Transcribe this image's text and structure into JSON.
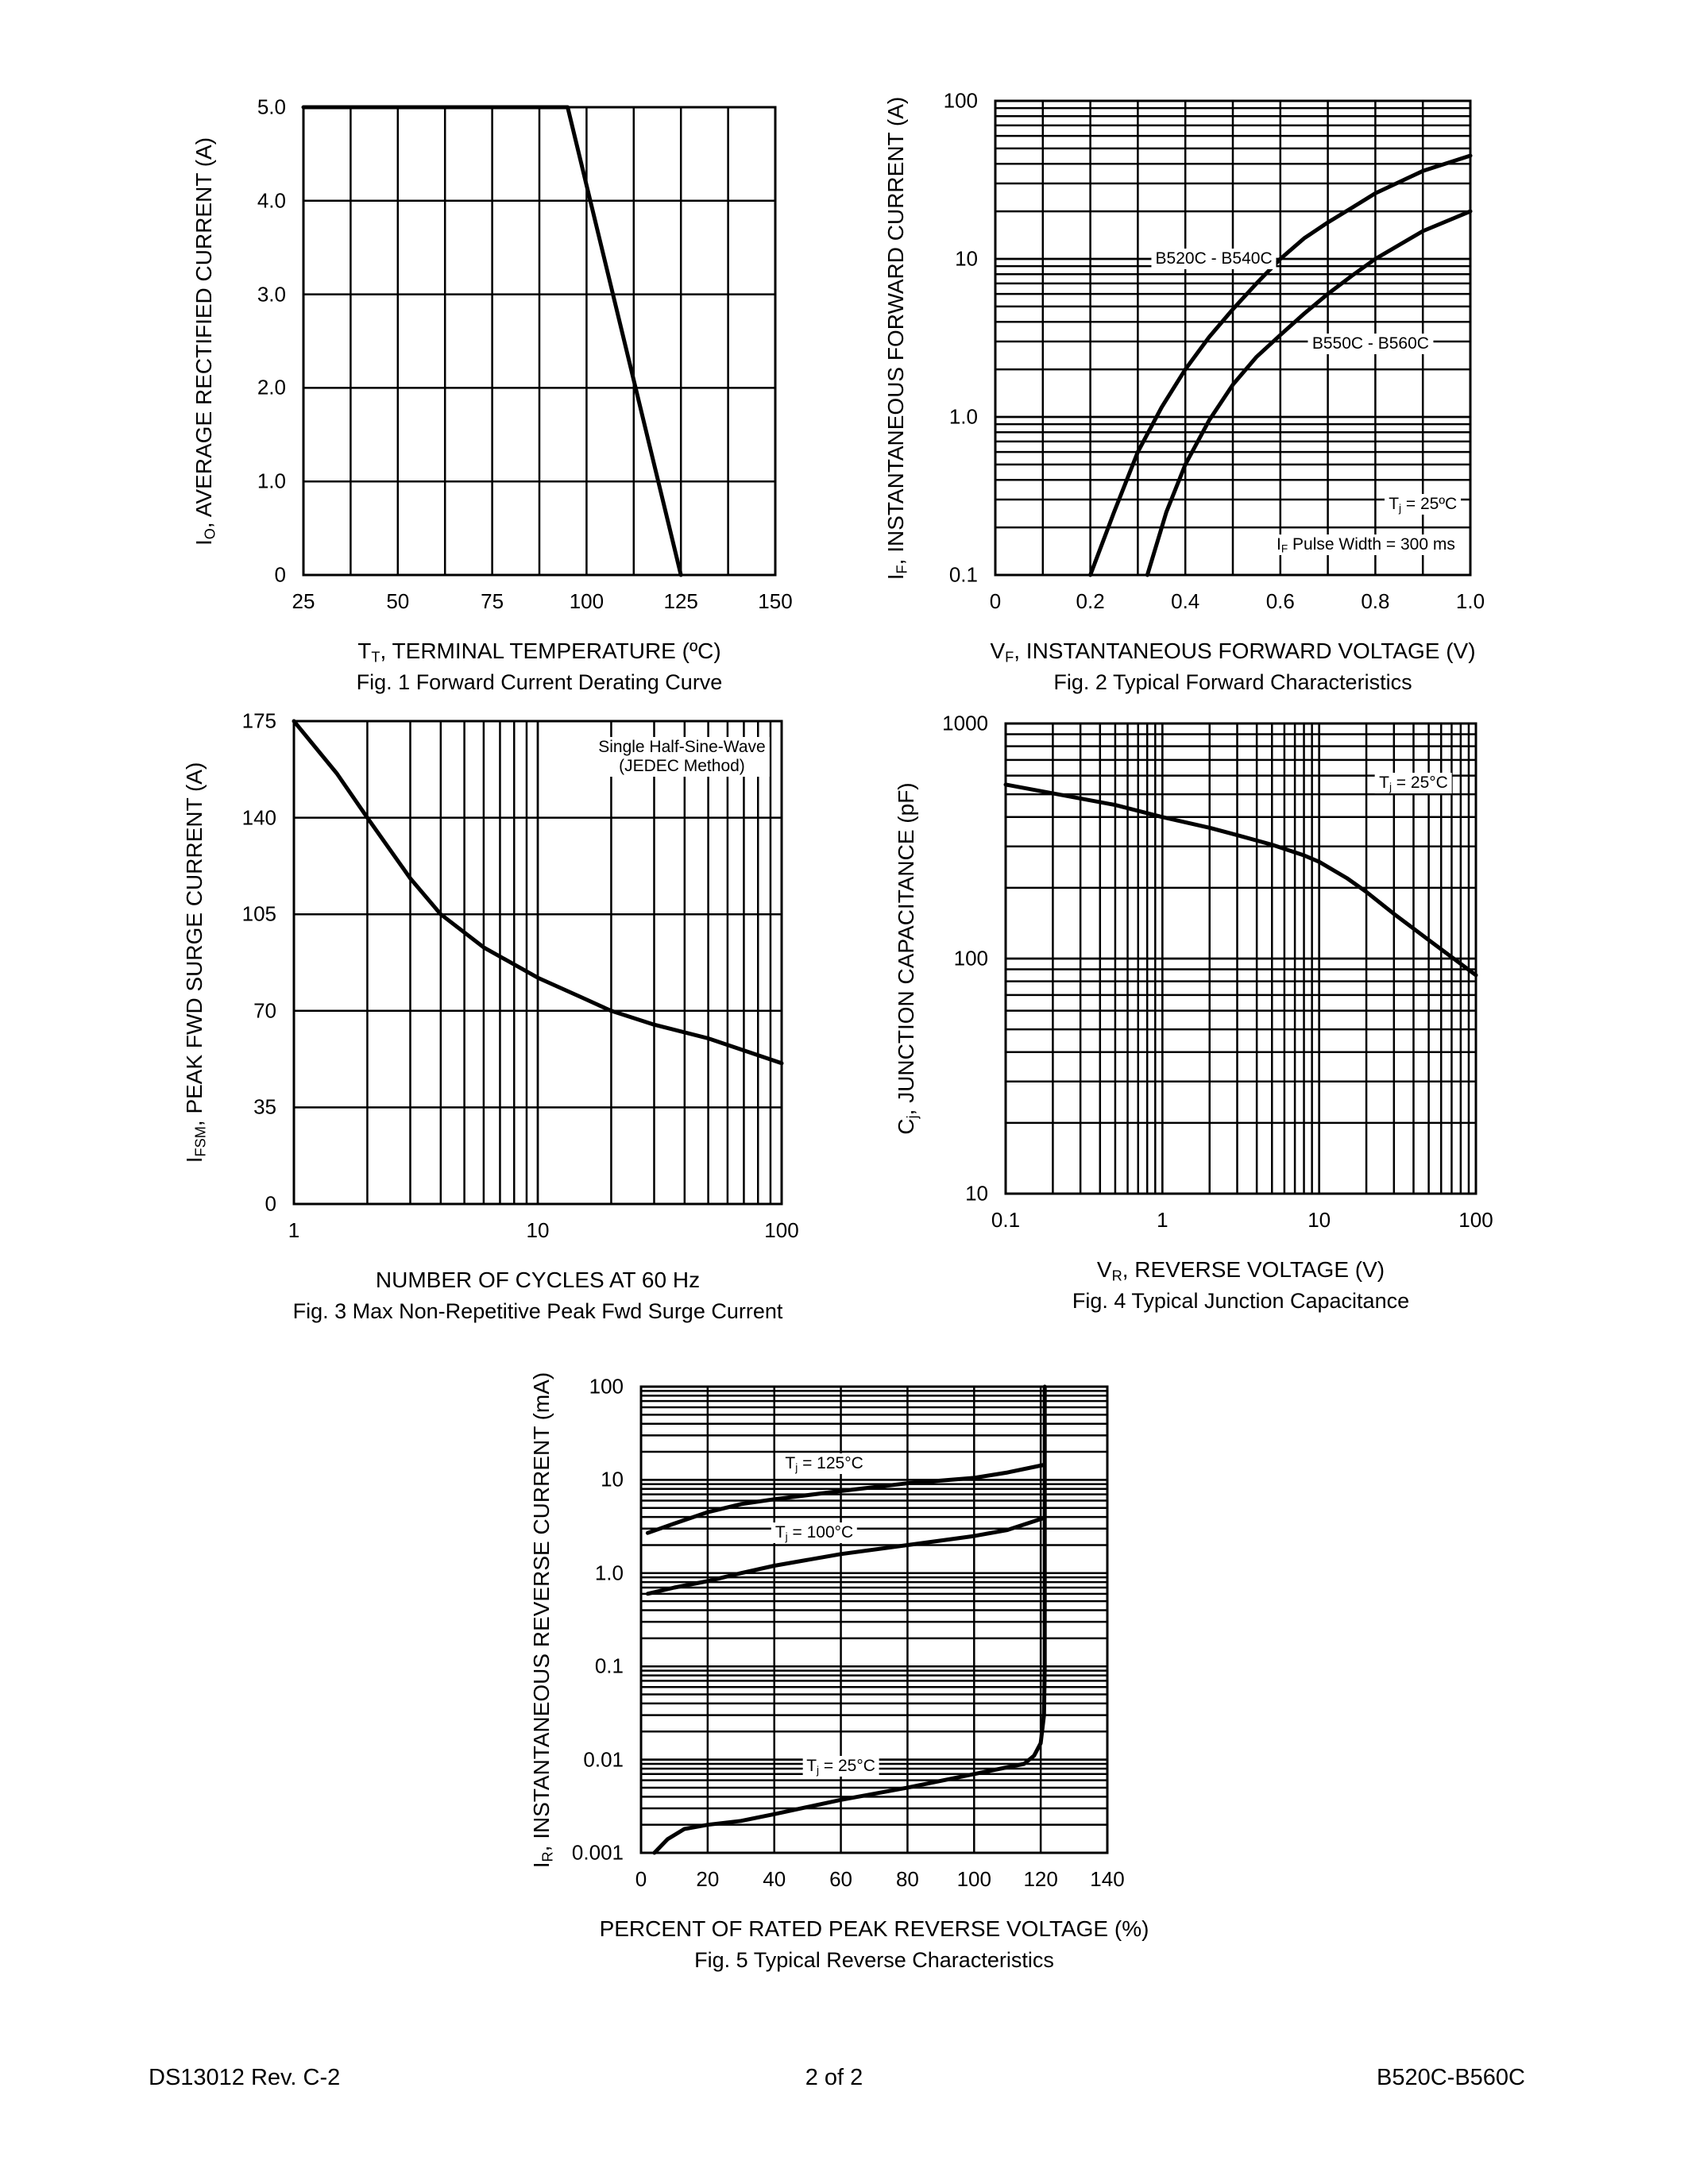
{
  "footer": {
    "left": "DS13012 Rev. C-2",
    "center": "2 of 2",
    "right": "B520C-B560C"
  },
  "chart_data": [
    {
      "type": "line",
      "caption": "Fig. 1  Forward Current Derating Curve",
      "xlabel": {
        "main": "T",
        "sub": "T",
        "rest": ",  TERMINAL TEMPERATURE (ºC)"
      },
      "ylabel": {
        "main": "I",
        "sub": "O",
        "rest": ", AVERAGE RECTIFIED CURRENT (A)"
      },
      "xscale": "linear",
      "yscale": "linear",
      "xlim": [
        25,
        150
      ],
      "ylim": [
        0,
        5
      ],
      "x_grid_step": 12.5,
      "y_grid_step": 1,
      "xticks": [
        [
          25,
          "25"
        ],
        [
          50,
          "50"
        ],
        [
          75,
          "75"
        ],
        [
          100,
          "100"
        ],
        [
          125,
          "125"
        ],
        [
          150,
          "150"
        ]
      ],
      "yticks": [
        [
          0,
          "0"
        ],
        [
          1,
          "1.0"
        ],
        [
          2,
          "2.0"
        ],
        [
          3,
          "3.0"
        ],
        [
          4,
          "4.0"
        ],
        [
          5,
          "5.0"
        ]
      ],
      "grid": true,
      "series": [
        {
          "points": [
            [
              25,
              5
            ],
            [
              95,
              5
            ],
            [
              125,
              0
            ]
          ]
        }
      ],
      "annotations": []
    },
    {
      "type": "line",
      "caption": "Fig. 2  Typical Forward Characteristics",
      "xlabel": {
        "main": "V",
        "sub": "F",
        "rest": ", INSTANTANEOUS FORWARD VOLTAGE (V)"
      },
      "ylabel": {
        "main": "I",
        "sub": "F",
        "rest": ", INSTANTANEOUS FORWARD CURRENT (A)"
      },
      "xscale": "linear",
      "yscale": "log",
      "xlim": [
        0,
        1.0
      ],
      "ylim": [
        0.1,
        100
      ],
      "x_grid_step": 0.1,
      "xticks": [
        [
          0,
          "0"
        ],
        [
          0.2,
          "0.2"
        ],
        [
          0.4,
          "0.4"
        ],
        [
          0.6,
          "0.6"
        ],
        [
          0.8,
          "0.8"
        ],
        [
          1.0,
          "1.0"
        ]
      ],
      "yticks": [
        [
          0.1,
          "0.1"
        ],
        [
          1,
          "1.0"
        ],
        [
          10,
          "10"
        ],
        [
          100,
          "100"
        ]
      ],
      "grid": true,
      "series": [
        {
          "name": "B520C - B540C",
          "points": [
            [
              0.2,
              0.1
            ],
            [
              0.25,
              0.25
            ],
            [
              0.3,
              0.6
            ],
            [
              0.35,
              1.15
            ],
            [
              0.4,
              2
            ],
            [
              0.45,
              3.2
            ],
            [
              0.5,
              4.8
            ],
            [
              0.55,
              7
            ],
            [
              0.6,
              10
            ],
            [
              0.65,
              13.5
            ],
            [
              0.7,
              17
            ],
            [
              0.75,
              21
            ],
            [
              0.8,
              26
            ],
            [
              0.9,
              36
            ],
            [
              1.0,
              45
            ]
          ]
        },
        {
          "name": "B550C - B560C",
          "points": [
            [
              0.32,
              0.1
            ],
            [
              0.36,
              0.25
            ],
            [
              0.4,
              0.5
            ],
            [
              0.45,
              0.95
            ],
            [
              0.5,
              1.6
            ],
            [
              0.55,
              2.4
            ],
            [
              0.6,
              3.3
            ],
            [
              0.65,
              4.5
            ],
            [
              0.7,
              6
            ],
            [
              0.75,
              7.8
            ],
            [
              0.8,
              10
            ],
            [
              0.9,
              15
            ],
            [
              1.0,
              20
            ]
          ]
        }
      ],
      "annotations": [
        {
          "main": "B520C - B540C"
        },
        {
          "main": "B550C - B560C"
        },
        {
          "main": "T",
          "sub": "j",
          "rest": " = 25ºC"
        },
        {
          "main": "I",
          "sub": "F",
          "rest": " Pulse Width = 300 ms"
        }
      ]
    },
    {
      "type": "line",
      "caption": "Fig. 3  Max Non-Repetitive Peak Fwd Surge Current",
      "xlabel": {
        "main": "NUMBER OF CYCLES AT 60 Hz",
        "sub": "",
        "rest": ""
      },
      "ylabel": {
        "main": "I",
        "sub": "FSM",
        "rest": ", PEAK FWD SURGE CURRENT (A)"
      },
      "xscale": "log",
      "yscale": "linear",
      "xlim": [
        1,
        100
      ],
      "ylim": [
        0,
        175
      ],
      "y_grid_step": 35,
      "xticks": [
        [
          1,
          "1"
        ],
        [
          10,
          "10"
        ],
        [
          100,
          "100"
        ]
      ],
      "yticks": [
        [
          0,
          "0"
        ],
        [
          35,
          "35"
        ],
        [
          70,
          "70"
        ],
        [
          105,
          "105"
        ],
        [
          140,
          "140"
        ],
        [
          175,
          "175"
        ]
      ],
      "grid": true,
      "series": [
        {
          "points": [
            [
              1,
              175
            ],
            [
              1.5,
              156
            ],
            [
              2,
              140
            ],
            [
              3,
              118
            ],
            [
              4,
              105
            ],
            [
              6,
              93
            ],
            [
              10,
              82
            ],
            [
              15,
              75
            ],
            [
              20,
              70
            ],
            [
              30,
              65
            ],
            [
              50,
              60
            ],
            [
              100,
              51
            ]
          ]
        }
      ],
      "annotations": [
        {
          "main": "Single Half-Sine-Wave",
          "line2": "(JEDEC Method)"
        }
      ]
    },
    {
      "type": "line",
      "caption": "Fig. 4  Typical Junction Capacitance",
      "xlabel": {
        "main": "V",
        "sub": "R",
        "rest": ", REVERSE VOLTAGE (V)"
      },
      "ylabel": {
        "main": "C",
        "sub": "j",
        "rest": ", JUNCTION CAPACITANCE (pF)"
      },
      "xscale": "log",
      "yscale": "log",
      "xlim": [
        0.1,
        100
      ],
      "ylim": [
        10,
        1000
      ],
      "xticks": [
        [
          0.1,
          "0.1"
        ],
        [
          1,
          "1"
        ],
        [
          10,
          "10"
        ],
        [
          100,
          "100"
        ]
      ],
      "yticks": [
        [
          10,
          "10"
        ],
        [
          100,
          "100"
        ],
        [
          1000,
          "1000"
        ]
      ],
      "grid": true,
      "series": [
        {
          "points": [
            [
              0.1,
              550
            ],
            [
              0.3,
              480
            ],
            [
              0.5,
              450
            ],
            [
              1,
              400
            ],
            [
              2,
              360
            ],
            [
              3,
              335
            ],
            [
              5,
              305
            ],
            [
              8,
              275
            ],
            [
              10,
              258
            ],
            [
              15,
              220
            ],
            [
              20,
              192
            ],
            [
              30,
              155
            ],
            [
              50,
              120
            ],
            [
              100,
              85
            ]
          ]
        }
      ],
      "annotations": [
        {
          "main": "T",
          "sub": "j",
          "rest": " = 25°C"
        }
      ]
    },
    {
      "type": "line",
      "caption": "Fig. 5  Typical Reverse Characteristics",
      "xlabel": {
        "main": "PERCENT OF RATED PEAK REVERSE VOLTAGE (%)",
        "sub": "",
        "rest": ""
      },
      "ylabel": {
        "main": "I",
        "sub": "R",
        "rest": ", INSTANTANEOUS REVERSE CURRENT (mA)"
      },
      "xscale": "linear",
      "yscale": "log",
      "xlim": [
        0,
        140
      ],
      "ylim": [
        0.001,
        100
      ],
      "x_grid_step": 20,
      "xticks": [
        [
          0,
          "0"
        ],
        [
          20,
          "20"
        ],
        [
          40,
          "40"
        ],
        [
          60,
          "60"
        ],
        [
          80,
          "80"
        ],
        [
          100,
          "100"
        ],
        [
          120,
          "120"
        ],
        [
          140,
          "140"
        ]
      ],
      "yticks": [
        [
          0.001,
          "0.001"
        ],
        [
          0.01,
          "0.01"
        ],
        [
          0.1,
          "0.1"
        ],
        [
          1,
          "1.0"
        ],
        [
          10,
          "10"
        ],
        [
          100,
          "100"
        ]
      ],
      "grid": true,
      "series": [
        {
          "name": "Tj = 125°C",
          "points": [
            [
              2,
              2.7
            ],
            [
              10,
              3.4
            ],
            [
              20,
              4.5
            ],
            [
              30,
              5.5
            ],
            [
              40,
              6.2
            ],
            [
              60,
              7.6
            ],
            [
              80,
              9.2
            ],
            [
              100,
              10.5
            ],
            [
              110,
              12
            ],
            [
              121,
              14.5
            ]
          ]
        },
        {
          "name": "Tj = 100°C",
          "points": [
            [
              2,
              0.6
            ],
            [
              10,
              0.7
            ],
            [
              20,
              0.82
            ],
            [
              30,
              1
            ],
            [
              40,
              1.2
            ],
            [
              60,
              1.6
            ],
            [
              80,
              2
            ],
            [
              100,
              2.5
            ],
            [
              110,
              2.9
            ],
            [
              121,
              3.9
            ]
          ]
        },
        {
          "name": "Tj = 25°C",
          "points": [
            [
              4,
              0.001
            ],
            [
              8,
              0.0014
            ],
            [
              13,
              0.0018
            ],
            [
              20,
              0.002
            ],
            [
              30,
              0.0022
            ],
            [
              40,
              0.0026
            ],
            [
              60,
              0.0037
            ],
            [
              80,
              0.005
            ],
            [
              100,
              0.007
            ],
            [
              115,
              0.009
            ],
            [
              118,
              0.011
            ],
            [
              120,
              0.015
            ],
            [
              121,
              0.03
            ],
            [
              121.2,
              0.1
            ],
            [
              121.2,
              100
            ]
          ]
        }
      ],
      "annotations": [
        {
          "main": "T",
          "sub": "j",
          "rest": " = 125°C"
        },
        {
          "main": "T",
          "sub": "j",
          "rest": " = 100°C"
        },
        {
          "main": "T",
          "sub": "j",
          "rest": " = 25°C"
        }
      ]
    }
  ]
}
